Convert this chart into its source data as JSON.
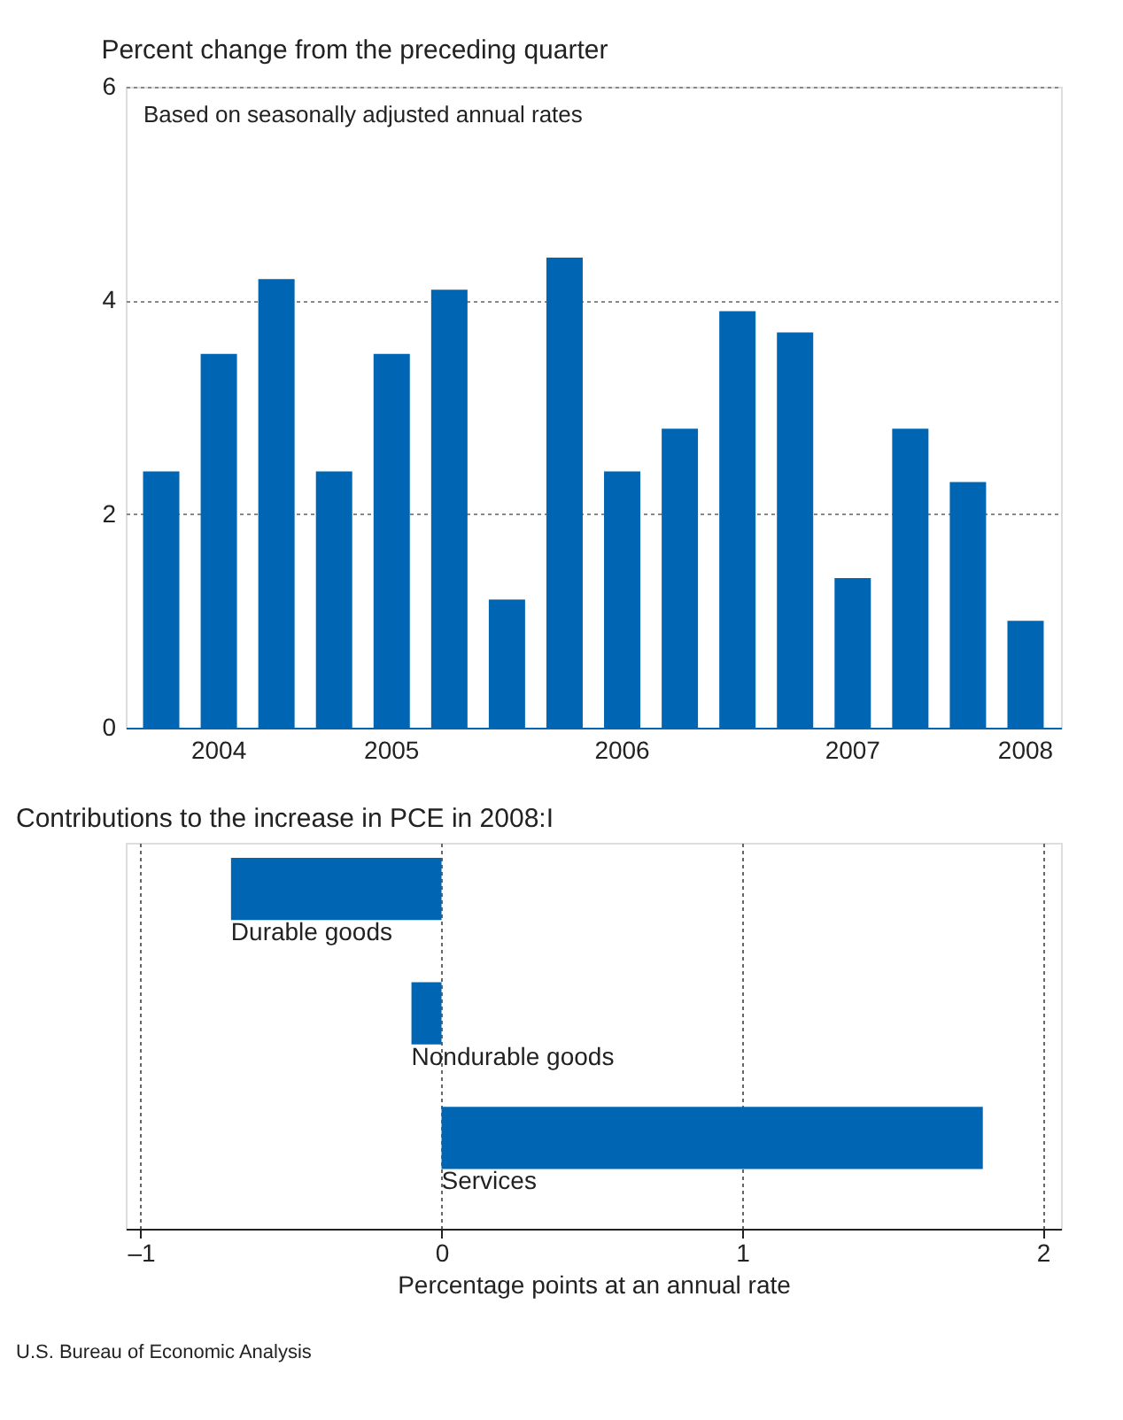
{
  "chart_data": [
    {
      "type": "bar",
      "title": "Percent change from the preceding quarter",
      "annotations": [
        "Based on seasonally adjusted annual rates"
      ],
      "categories": [
        null,
        "2004",
        null,
        null,
        "2005",
        null,
        null,
        null,
        "2006",
        null,
        null,
        null,
        "2007",
        null,
        null,
        "2008"
      ],
      "values": [
        2.4,
        3.5,
        4.2,
        2.4,
        3.5,
        4.1,
        1.2,
        4.4,
        2.4,
        2.8,
        3.9,
        3.7,
        1.4,
        2.8,
        2.3,
        1.0
      ],
      "color": "#0066b3",
      "ylim": [
        0,
        6
      ],
      "yticks": [
        0,
        2,
        4,
        6
      ],
      "grid": "y"
    },
    {
      "type": "bar",
      "orientation": "horizontal",
      "title": "Contributions to the increase in PCE in 2008:I",
      "xlabel": "Percentage points at an annual rate",
      "categories": [
        "Durable goods",
        "Nondurable goods",
        "Services"
      ],
      "values": [
        -0.7,
        -0.1,
        1.8
      ],
      "color": "#0066b3",
      "xlim": [
        -1.05,
        2.06
      ],
      "xticks": [
        {
          "value": -1,
          "label": "–1"
        },
        0,
        1,
        2
      ],
      "grid": "x",
      "annotations": [
        "U.S. Bureau of Economic Analysis"
      ]
    }
  ]
}
